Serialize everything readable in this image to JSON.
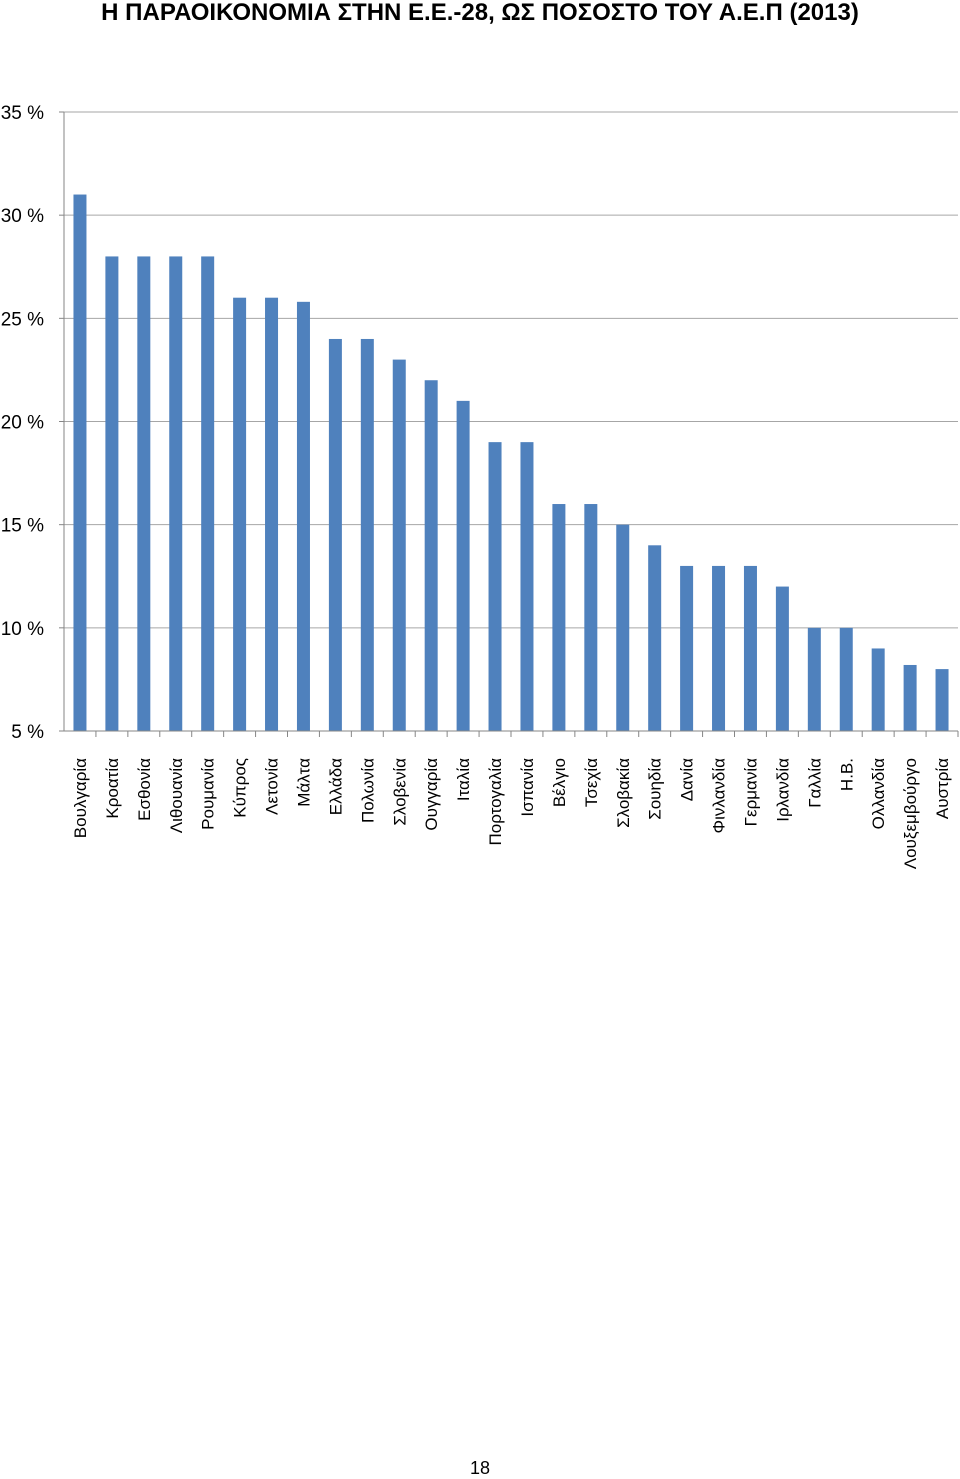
{
  "page": {
    "title": "Η ΠΑΡΑΟΙΚΟΝΟΜΙΑ ΣΤΗΝ Ε.Ε.-28, ΩΣ ΠΟΣΟΣΤΟ ΤΟΥ Α.Ε.Π (2013)",
    "page_number": "18"
  },
  "colors": {
    "bar": "#4f81bd",
    "grid": "#a6a6a6",
    "axis": "#868686"
  },
  "chart_data": {
    "type": "bar",
    "title": "Η ΠΑΡΑΟΙΚΟΝΟΜΙΑ ΣΤΗΝ Ε.Ε.-28, ΩΣ ΠΟΣΟΣΤΟ ΤΟΥ Α.Ε.Π (2013)",
    "xlabel": "",
    "ylabel": "",
    "ylim": [
      5,
      35
    ],
    "yticks": [
      5,
      10,
      15,
      20,
      25,
      30,
      35
    ],
    "ytick_labels": [
      "5 %",
      "10 %",
      "15 %",
      "20 %",
      "25 %",
      "30 %",
      "35 %"
    ],
    "grid": true,
    "legend": "none",
    "categories": [
      "Βουλγαρία",
      "Κροατία",
      "Εσθονία",
      "Λιθουανία",
      "Ρουμανία",
      "Κύπρος",
      "Λετονία",
      "Μάλτα",
      "Ελλάδα",
      "Πολωνία",
      "Σλοβενία",
      "Ουγγαρία",
      "Ιταλία",
      "Πορτογαλία",
      "Ισπανία",
      "Βέλγιο",
      "Τσεχία",
      "Σλοβακία",
      "Σουηδία",
      "Δανία",
      "Φινλανδία",
      "Γερμανία",
      "Ιρλανδία",
      "Γαλλία",
      "Η.Β.",
      "Ολλανδία",
      "Λουξεμβούργο",
      "Αυστρία"
    ],
    "values": [
      31,
      28,
      28,
      28,
      28,
      26,
      26,
      25.8,
      24,
      24,
      23,
      22,
      21,
      19,
      19,
      16,
      16,
      15,
      14,
      13,
      13,
      13,
      12,
      10,
      10,
      9,
      8.2,
      8
    ]
  }
}
